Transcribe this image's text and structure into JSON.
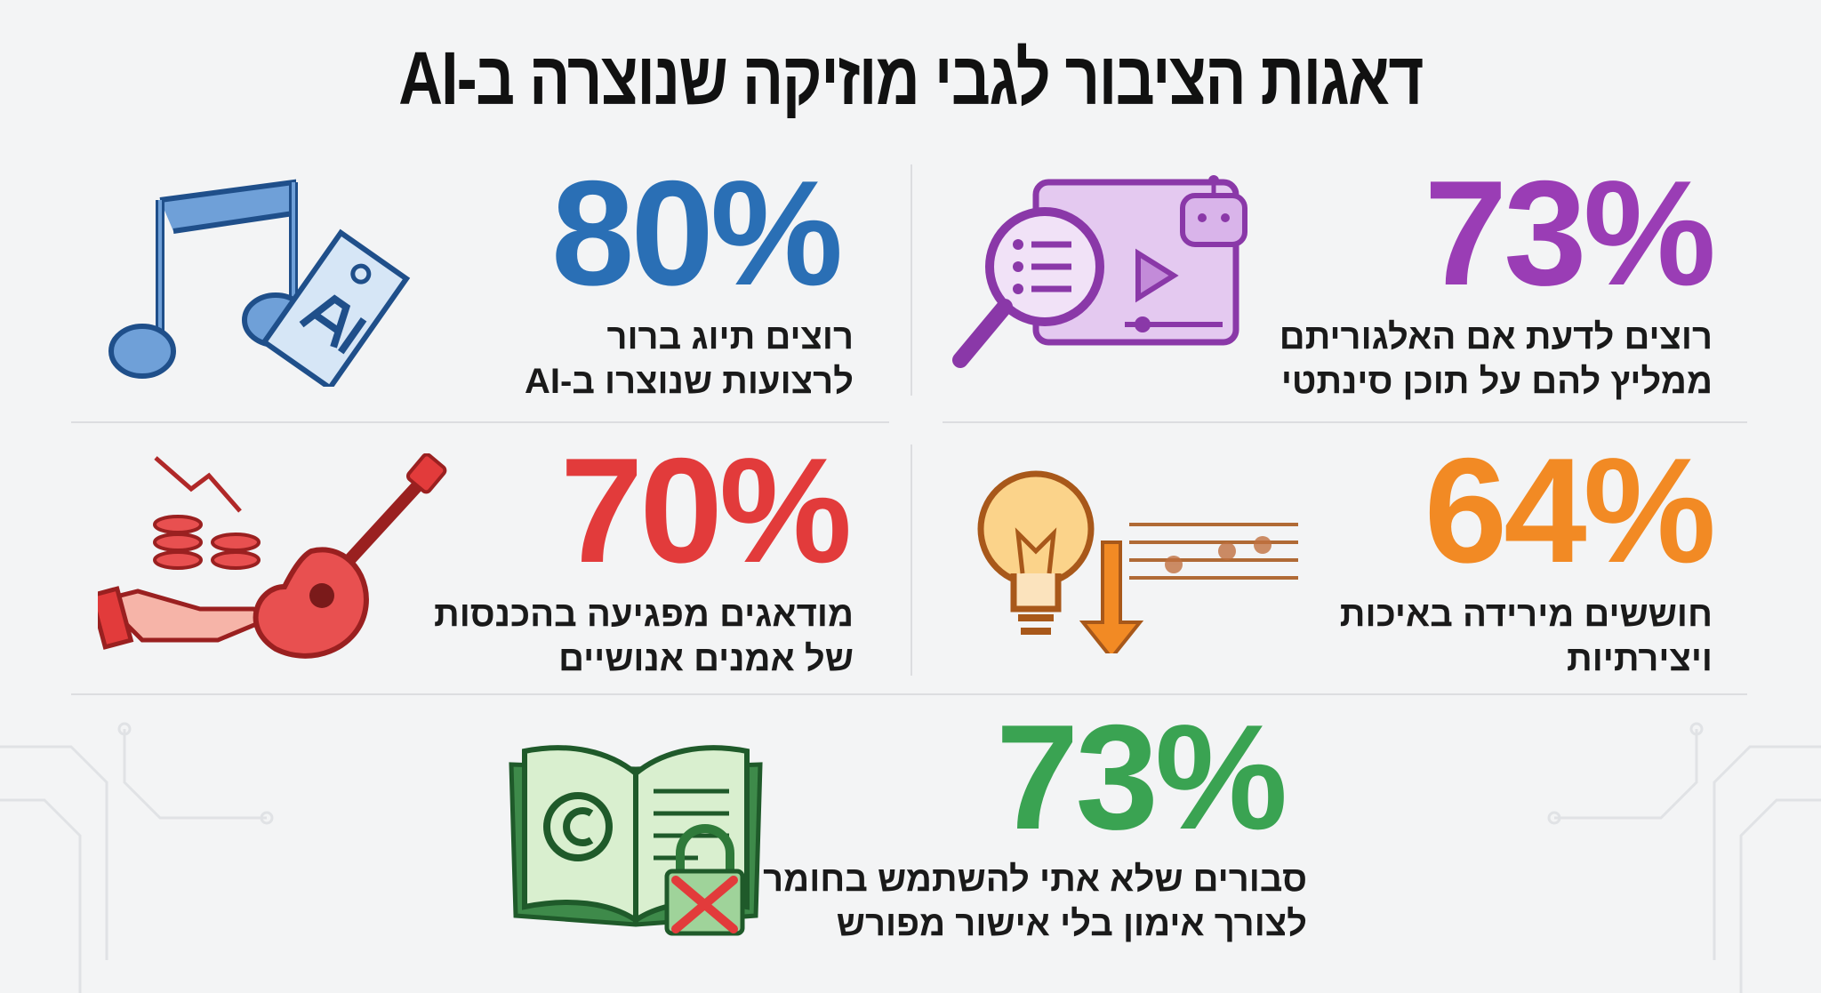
{
  "title": "דאגות הציבור לגבי מוזיקה שנוצרה ב-AI",
  "stats": [
    {
      "value": "73%",
      "lines": [
        "רוצים לדעת אם האלגוריתם",
        "ממליץ להם על תוכן סינתטי"
      ],
      "color": "#9a3db5",
      "icon": "magnifier-video-robot-icon"
    },
    {
      "value": "80%",
      "lines": [
        "רוצים תיוג ברור",
        "לרצועות שנוצרו ב-AI"
      ],
      "color": "#2a6fb5",
      "icon": "music-note-ai-tag-icon"
    },
    {
      "value": "64%",
      "lines": [
        "חוששים מירידה באיכות",
        "ויצירתיות"
      ],
      "color": "#f28a24",
      "icon": "lightbulb-down-music-icon"
    },
    {
      "value": "70%",
      "lines": [
        "מודאגים מפגיעה בהכנסות",
        "של אמנים אנושיים"
      ],
      "color": "#e23b3b",
      "icon": "coins-hand-guitar-icon"
    },
    {
      "value": "73%",
      "lines": [
        "סבורים שלא אתי להשתמש בחומר",
        "לצורך אימון בלי אישור מפורש"
      ],
      "color": "#3aa352",
      "icon": "copyright-book-lock-icon"
    }
  ]
}
